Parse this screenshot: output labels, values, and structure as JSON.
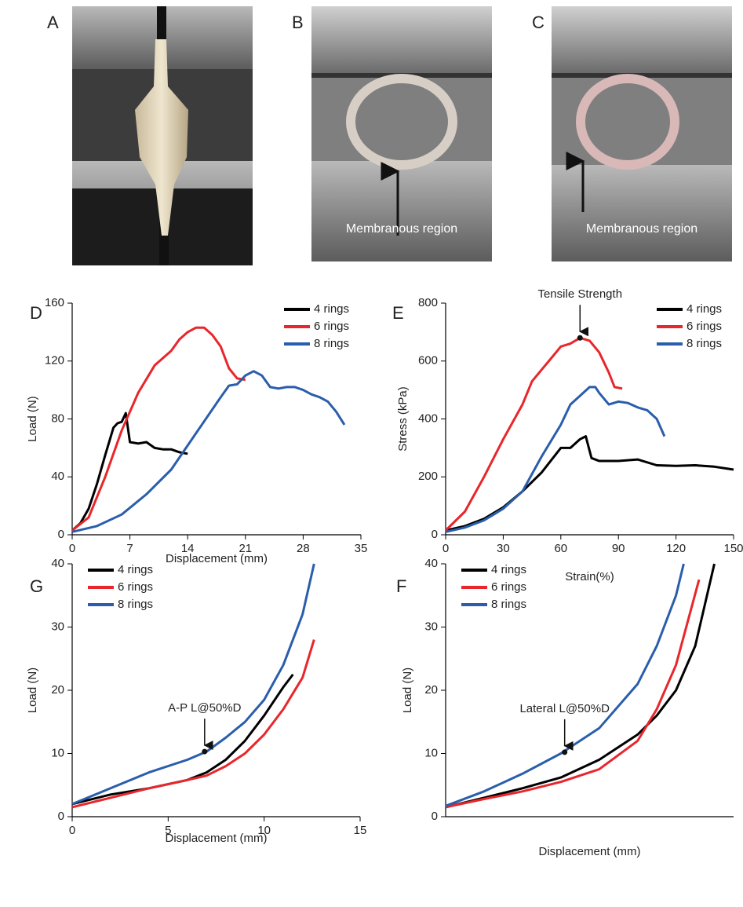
{
  "photos": [
    {
      "label": "A"
    },
    {
      "label": "B",
      "annotation": "Membranous region"
    },
    {
      "label": "C",
      "annotation": "Membranous region"
    }
  ],
  "chart_data": [
    {
      "type": "line",
      "panel": "D",
      "xlabel": "Displacement (mm)",
      "ylabel": "Load (N)",
      "xlim": [
        0,
        35
      ],
      "xticks": [
        0,
        7,
        14,
        21,
        28,
        35
      ],
      "ylim": [
        0,
        160
      ],
      "yticks": [
        0,
        40,
        80,
        120,
        160
      ],
      "legend": "upper right",
      "series": [
        {
          "name": "4 rings",
          "color": "#000000",
          "x": [
            0,
            1,
            2,
            3,
            4,
            5,
            5.5,
            6,
            6.5,
            6.8,
            7,
            8,
            9,
            10,
            11,
            12,
            13,
            14
          ],
          "values": [
            3,
            8,
            18,
            35,
            55,
            74,
            77,
            78,
            84,
            72,
            64,
            63,
            64,
            60,
            59,
            59,
            57,
            56
          ]
        },
        {
          "name": "6 rings",
          "color": "#e8262b",
          "x": [
            0,
            2,
            4,
            6,
            8,
            10,
            12,
            13,
            14,
            15,
            16,
            17,
            18,
            19,
            20,
            21
          ],
          "values": [
            3,
            12,
            40,
            72,
            98,
            117,
            127,
            135,
            140,
            143,
            143,
            138,
            130,
            115,
            108,
            107
          ]
        },
        {
          "name": "8 rings",
          "color": "#2a5eab",
          "x": [
            0,
            3,
            6,
            9,
            12,
            15,
            18,
            19,
            20,
            21,
            22,
            23,
            24,
            25,
            26,
            27,
            28,
            29,
            30,
            31,
            32,
            33
          ],
          "values": [
            2,
            6,
            14,
            28,
            45,
            70,
            95,
            103,
            104,
            110,
            113,
            110,
            102,
            101,
            102,
            102,
            100,
            97,
            95,
            92,
            85,
            76
          ]
        }
      ]
    },
    {
      "type": "line",
      "panel": "E",
      "xlabel": "Strain(%)",
      "ylabel": "Stress (kPa)",
      "xlim": [
        0,
        150
      ],
      "xticks": [
        0,
        30,
        60,
        90,
        120,
        150
      ],
      "ylim": [
        0,
        800
      ],
      "yticks": [
        0,
        200,
        400,
        600,
        800
      ],
      "legend": "upper right",
      "annotation": {
        "text": "Tensile Strength",
        "x": 70,
        "y": 680
      },
      "series": [
        {
          "name": "4 rings",
          "color": "#000000",
          "x": [
            0,
            10,
            20,
            30,
            40,
            50,
            60,
            65,
            70,
            73,
            76,
            80,
            90,
            100,
            110,
            120,
            130,
            140,
            150
          ],
          "values": [
            15,
            30,
            55,
            95,
            150,
            215,
            300,
            300,
            330,
            340,
            265,
            255,
            255,
            260,
            240,
            238,
            240,
            235,
            225
          ]
        },
        {
          "name": "6 rings",
          "color": "#e8262b",
          "x": [
            0,
            10,
            20,
            30,
            40,
            45,
            50,
            55,
            60,
            65,
            70,
            75,
            80,
            85,
            88,
            92
          ],
          "values": [
            15,
            80,
            200,
            330,
            450,
            530,
            570,
            610,
            650,
            660,
            680,
            670,
            630,
            560,
            510,
            505
          ]
        },
        {
          "name": "8 rings",
          "color": "#2a5eab",
          "x": [
            0,
            10,
            20,
            30,
            40,
            50,
            60,
            65,
            70,
            75,
            78,
            80,
            85,
            90,
            95,
            100,
            105,
            110,
            114
          ],
          "values": [
            10,
            25,
            50,
            90,
            150,
            270,
            380,
            450,
            480,
            510,
            510,
            490,
            450,
            460,
            455,
            440,
            430,
            400,
            340
          ]
        }
      ]
    },
    {
      "type": "line",
      "panel": "G",
      "xlabel": "Displacement (mm)",
      "ylabel": "Load (N)",
      "xlim": [
        0,
        15
      ],
      "xticks": [
        0,
        5,
        10,
        15
      ],
      "ylim": [
        0,
        40
      ],
      "yticks": [
        0,
        10,
        20,
        30,
        40
      ],
      "legend": "upper left",
      "annotation": {
        "text": "A-P L@50%D",
        "x": 6.9,
        "y": 10.3
      },
      "series": [
        {
          "name": "4 rings",
          "color": "#000000",
          "x": [
            0,
            2,
            4,
            6,
            7,
            8,
            9,
            10,
            11,
            11.5
          ],
          "values": [
            2,
            3.5,
            4.5,
            5.8,
            7,
            9,
            12,
            16,
            20.5,
            22.5
          ]
        },
        {
          "name": "6 rings",
          "color": "#e8262b",
          "x": [
            0,
            2,
            4,
            6,
            7,
            8,
            9,
            10,
            11,
            12,
            12.6
          ],
          "values": [
            1.5,
            3,
            4.5,
            5.8,
            6.5,
            8,
            10,
            13,
            17,
            22,
            28
          ]
        },
        {
          "name": "8 rings",
          "color": "#2a5eab",
          "x": [
            0,
            2,
            4,
            6,
            7,
            8,
            9,
            10,
            11,
            12,
            12.6
          ],
          "values": [
            2,
            4.5,
            7,
            9,
            10.3,
            12.5,
            15,
            18.5,
            24,
            32,
            40
          ]
        }
      ]
    },
    {
      "type": "line",
      "panel": "F",
      "xlabel": "Displacement (mm)",
      "ylabel": "Load (N)",
      "xlim": [
        0,
        15
      ],
      "ylim": [
        0,
        40
      ],
      "yticks": [
        0,
        10,
        20,
        30,
        40
      ],
      "legend": "upper left",
      "annotation": {
        "text": "Lateral L@50%D",
        "x": 6.2,
        "y": 10.2
      },
      "series": [
        {
          "name": "4 rings",
          "color": "#000000",
          "x": [
            0,
            2,
            4,
            6,
            8,
            10,
            11,
            12,
            13,
            14
          ],
          "values": [
            1.5,
            3,
            4.5,
            6.2,
            9,
            13,
            16,
            20,
            27,
            40
          ]
        },
        {
          "name": "6 rings",
          "color": "#e8262b",
          "x": [
            0,
            2,
            4,
            6,
            8,
            10,
            11,
            12,
            13.2
          ],
          "values": [
            1.5,
            2.8,
            4,
            5.5,
            7.5,
            12,
            17,
            24,
            37.5
          ]
        },
        {
          "name": "8 rings",
          "color": "#2a5eab",
          "x": [
            0,
            2,
            4,
            6,
            8,
            10,
            11,
            12,
            12.4
          ],
          "values": [
            1.7,
            4,
            6.8,
            10,
            14,
            21,
            27,
            35,
            40
          ]
        }
      ]
    }
  ]
}
